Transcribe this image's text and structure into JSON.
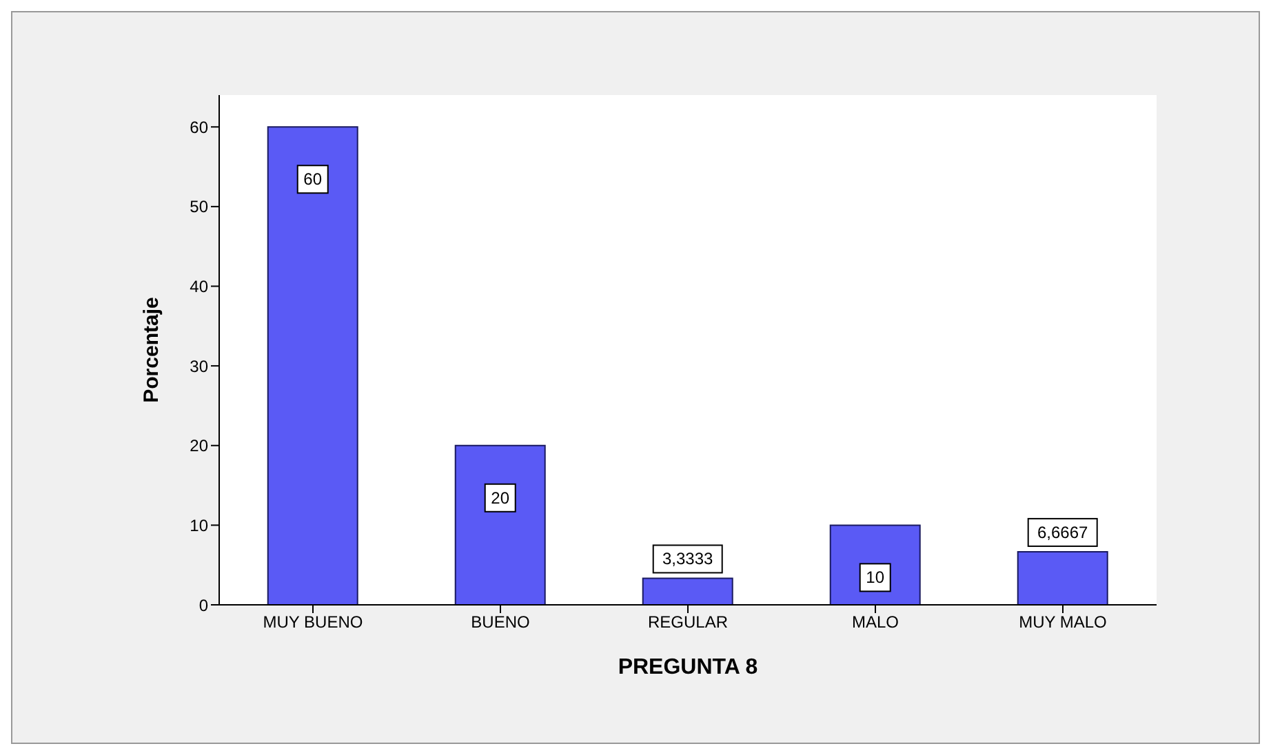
{
  "chart_data": {
    "type": "bar",
    "xlabel": "PREGUNTA 8",
    "ylabel": "Porcentaje",
    "categories": [
      "MUY BUENO",
      "BUENO",
      "REGULAR",
      "MALO",
      "MUY MALO"
    ],
    "values": [
      60,
      20,
      3.3333,
      10,
      6.6667
    ],
    "value_labels": [
      "60",
      "20",
      "3,3333",
      "10",
      "6,6667"
    ],
    "color": "#5a5af5",
    "ylim": [
      0,
      64
    ],
    "yticks": [
      0,
      10,
      20,
      30,
      40,
      50,
      60
    ]
  }
}
